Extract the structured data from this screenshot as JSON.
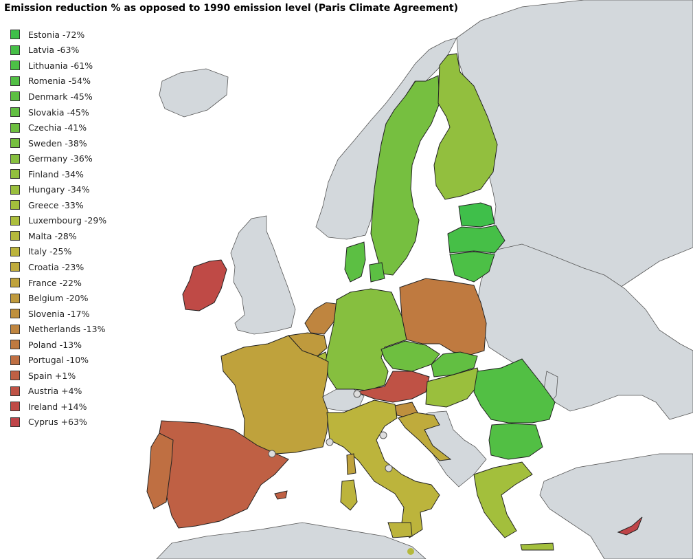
{
  "title": "Emission reduction % as opposed to 1990 emission level (Paris Climate Agreement)",
  "colors": {
    "background": "#ffffff",
    "non_eu_land": "#d3d8dc",
    "border": "#222222"
  },
  "legend": [
    {
      "label": "Estonia -72%",
      "color": "#3fbf4a"
    },
    {
      "label": "Latvia -63%",
      "color": "#46bf47"
    },
    {
      "label": "Lithuania -61%",
      "color": "#4cc046"
    },
    {
      "label": "Romenia -54%",
      "color": "#52bf44"
    },
    {
      "label": "Denmark -45%",
      "color": "#5cbf43"
    },
    {
      "label": "Slovakia -45%",
      "color": "#62bf42"
    },
    {
      "label": "Czechia -41%",
      "color": "#6ebf40"
    },
    {
      "label": "Sweden -38%",
      "color": "#76bf40"
    },
    {
      "label": "Germany -36%",
      "color": "#86bf3f"
    },
    {
      "label": "Finland -34%",
      "color": "#92bf3e"
    },
    {
      "label": "Hungary -34%",
      "color": "#9abf3d"
    },
    {
      "label": "Greece -33%",
      "color": "#a3bf3c"
    },
    {
      "label": "Luxembourg -29%",
      "color": "#acbe3c"
    },
    {
      "label": "Malta -28%",
      "color": "#b5b93c"
    },
    {
      "label": "Italy -25%",
      "color": "#bcb43c"
    },
    {
      "label": "Croatia -23%",
      "color": "#bfab3c"
    },
    {
      "label": "France -22%",
      "color": "#bfa23c"
    },
    {
      "label": "Belgium -20%",
      "color": "#bf9a3d"
    },
    {
      "label": "Slovenia -17%",
      "color": "#bf903e"
    },
    {
      "label": "Netherlands -13%",
      "color": "#bf853f"
    },
    {
      "label": "Poland -13%",
      "color": "#bf7a40"
    },
    {
      "label": "Portugal -10%",
      "color": "#bf6f42"
    },
    {
      "label": "Spain +1%",
      "color": "#bf6044"
    },
    {
      "label": "Austria +4%",
      "color": "#bf5245"
    },
    {
      "label": "Ireland +14%",
      "color": "#bf4a46"
    },
    {
      "label": "Cyprus +63%",
      "color": "#bf4448"
    }
  ]
}
